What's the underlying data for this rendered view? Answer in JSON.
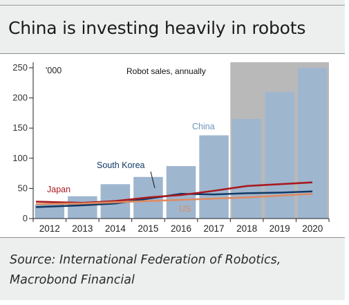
{
  "title": "China is investing heavily in robots",
  "source": "Source: International Federation of Robotics, Macrobond Financial",
  "chart_data": {
    "type": "bar",
    "title": "",
    "unit_label": "'000",
    "annotation": "Robot sales, annually",
    "categories": [
      "2012",
      "2013",
      "2014",
      "2015",
      "2016",
      "2017",
      "2018",
      "2019",
      "2020"
    ],
    "forecast_from": "2018",
    "ylim": [
      0,
      250
    ],
    "yticks": [
      0,
      50,
      100,
      150,
      200,
      250
    ],
    "grid": false,
    "series": [
      {
        "name": "China",
        "kind": "bar",
        "color": "#9fb6cf",
        "values": [
          23,
          37,
          57,
          69,
          87,
          138,
          165,
          210,
          250
        ]
      },
      {
        "name": "South Korea",
        "kind": "line",
        "color": "#123a66",
        "values": [
          19,
          22,
          25,
          33,
          41,
          40,
          42,
          43,
          45
        ]
      },
      {
        "name": "Japan",
        "kind": "line",
        "color": "#a81a1f",
        "values": [
          28,
          26,
          29,
          35,
          39,
          46,
          54,
          57,
          60
        ]
      },
      {
        "name": "US",
        "kind": "line",
        "color": "#e08a60",
        "values": [
          24,
          25,
          27,
          29,
          31,
          33,
          35,
          38,
          41
        ]
      }
    ]
  }
}
